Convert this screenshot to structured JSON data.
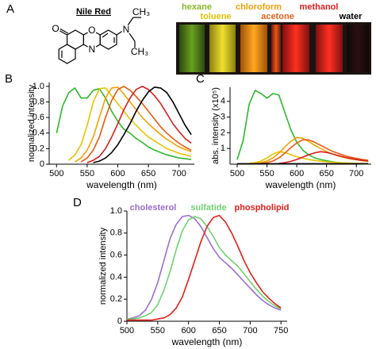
{
  "panel_a": {
    "label": "A",
    "molecule": "Nile Red",
    "atoms": [
      "O",
      "O",
      "N",
      "N",
      "CH₃",
      "CH₃"
    ],
    "solvents": [
      {
        "name": "hexane",
        "color": "#8ab62a"
      },
      {
        "name": "toluene",
        "color": "#dcc400"
      },
      {
        "name": "chloroform",
        "color": "#f0a000"
      },
      {
        "name": "acetone",
        "color": "#e0641e"
      },
      {
        "name": "methanol",
        "color": "#d42020"
      },
      {
        "name": "water",
        "color": "#000000"
      }
    ]
  },
  "chart_data": [
    {
      "type": "line",
      "panel": "B",
      "x_label": "wavelength (nm)",
      "y_label": "normalized intensity",
      "x": [
        490,
        500,
        510,
        520,
        530,
        540,
        550,
        560,
        570,
        580,
        590,
        600,
        610,
        620,
        630,
        640,
        650,
        660,
        670,
        680,
        690,
        700,
        710,
        720
      ],
      "xlim": [
        488,
        725
      ],
      "xticks": [
        500,
        550,
        600,
        650,
        700
      ],
      "ylim": [
        0,
        1.05
      ],
      "yticks": [
        0,
        0.2,
        0.4,
        0.6,
        0.8,
        {
          "value": 1,
          "label": "1.0"
        }
      ],
      "series": [
        {
          "color": "#2db82d",
          "values": [
            null,
            0.4,
            0.75,
            0.92,
            0.98,
            0.85,
            0.85,
            0.95,
            0.97,
            0.85,
            0.68,
            0.55,
            0.45,
            0.4,
            0.33,
            0.28,
            0.22,
            0.18,
            0.15,
            0.12,
            0.1,
            0.08,
            0.07,
            0.06
          ]
        },
        {
          "color": "#e6c200",
          "values": [
            null,
            null,
            null,
            0.05,
            0.12,
            0.25,
            0.5,
            0.8,
            0.97,
            0.98,
            0.88,
            0.78,
            0.68,
            0.58,
            0.5,
            0.42,
            0.35,
            0.3,
            0.25,
            0.2,
            0.17,
            0.14,
            0.12,
            0.1
          ]
        },
        {
          "color": "#f5a000",
          "values": [
            null,
            null,
            null,
            null,
            0.03,
            0.08,
            0.18,
            0.35,
            0.6,
            0.85,
            0.98,
            0.99,
            0.9,
            0.8,
            0.7,
            0.6,
            0.52,
            0.45,
            0.38,
            0.32,
            0.27,
            0.22,
            0.19,
            0.16
          ]
        },
        {
          "color": "#e85a10",
          "values": [
            null,
            null,
            null,
            null,
            null,
            0.03,
            0.08,
            0.18,
            0.35,
            0.6,
            0.82,
            0.96,
            1.0,
            0.95,
            0.87,
            0.78,
            0.68,
            0.58,
            0.48,
            0.4,
            0.33,
            0.27,
            0.22,
            0.18
          ]
        },
        {
          "color": "#d81e1e",
          "values": [
            null,
            null,
            null,
            null,
            null,
            null,
            0.02,
            0.05,
            0.1,
            0.2,
            0.35,
            0.52,
            0.7,
            0.85,
            0.96,
            1.0,
            0.96,
            0.88,
            0.78,
            0.65,
            0.52,
            0.42,
            0.33,
            0.27
          ]
        },
        {
          "color": "#000000",
          "values": [
            null,
            null,
            null,
            null,
            null,
            null,
            null,
            0.02,
            0.04,
            0.08,
            0.15,
            0.25,
            0.38,
            0.52,
            0.68,
            0.82,
            0.93,
            0.99,
            0.98,
            0.92,
            0.8,
            0.65,
            0.5,
            0.38
          ]
        }
      ]
    },
    {
      "type": "line",
      "panel": "C",
      "x_label": "wavelength (nm)",
      "y_label": "abs. intensity (x10⁵)",
      "x": [
        490,
        500,
        510,
        520,
        530,
        540,
        550,
        560,
        570,
        580,
        590,
        600,
        610,
        620,
        630,
        640,
        650,
        660,
        670,
        680,
        690,
        700,
        710,
        720
      ],
      "xlim": [
        488,
        725
      ],
      "xticks": [
        500,
        550,
        600,
        650,
        700
      ],
      "ylim": [
        0,
        4.9
      ],
      "yticks": [
        1,
        2,
        3,
        4
      ],
      "series": [
        {
          "color": "#2db82d",
          "values": [
            null,
            0.3,
            1.5,
            3.8,
            4.7,
            4.5,
            4.2,
            4.5,
            4.4,
            3.3,
            2.2,
            1.4,
            0.9,
            0.6,
            0.4,
            0.3,
            0.22,
            0.15,
            0.1,
            0.08,
            0.05,
            0.04,
            0.03,
            0.02
          ]
        },
        {
          "color": "#e6c200",
          "values": [
            null,
            null,
            null,
            0.05,
            0.1,
            0.2,
            0.4,
            0.65,
            0.8,
            0.75,
            0.6,
            0.48,
            0.38,
            0.3,
            0.24,
            0.19,
            0.15,
            0.12,
            0.1,
            0.08,
            0.06,
            0.05,
            0.04,
            0.03
          ]
        },
        {
          "color": "#f5a000",
          "values": [
            null,
            null,
            null,
            null,
            0.05,
            0.1,
            0.2,
            0.4,
            0.7,
            1.1,
            1.45,
            1.7,
            1.65,
            1.45,
            1.2,
            1.0,
            0.8,
            0.65,
            0.52,
            0.42,
            0.34,
            0.28,
            0.22,
            0.18
          ]
        },
        {
          "color": "#e85a10",
          "values": [
            null,
            null,
            null,
            null,
            null,
            0.05,
            0.1,
            0.2,
            0.4,
            0.7,
            1.05,
            1.35,
            1.55,
            1.55,
            1.4,
            1.2,
            1.0,
            0.82,
            0.68,
            0.55,
            0.45,
            0.37,
            0.3,
            0.25
          ]
        },
        {
          "color": "#d81e1e",
          "values": [
            null,
            null,
            null,
            null,
            null,
            null,
            null,
            null,
            0.05,
            0.1,
            0.18,
            0.3,
            0.45,
            0.6,
            0.72,
            0.8,
            0.75,
            0.65,
            0.55,
            0.45,
            0.37,
            0.3,
            0.24,
            0.2
          ]
        },
        {
          "color": "#000000",
          "values": [
            null,
            0.03,
            0.03,
            0.03,
            0.03,
            0.03,
            0.03,
            0.03,
            0.03,
            0.03,
            0.03,
            0.03,
            0.03,
            0.03,
            0.03,
            0.03,
            0.03,
            0.03,
            0.03,
            0.03,
            0.03,
            0.03,
            0.03,
            0.03
          ]
        }
      ]
    },
    {
      "type": "line",
      "panel": "D",
      "x_label": "wavelength (nm)",
      "y_label": "normalized intensity",
      "x": [
        500,
        510,
        520,
        530,
        540,
        550,
        560,
        570,
        580,
        590,
        600,
        610,
        620,
        630,
        640,
        650,
        660,
        670,
        680,
        690,
        700,
        710,
        720,
        730,
        740,
        750
      ],
      "xlim": [
        500,
        760
      ],
      "xticks": [
        500,
        550,
        600,
        650,
        700,
        750
      ],
      "ylim": [
        0,
        1.0
      ],
      "yticks": [
        0,
        0.2,
        0.4,
        0.6,
        0.8,
        {
          "value": 1,
          "label": "1.0"
        }
      ],
      "series": [
        {
          "name": "cholesterol",
          "color": "#9b6fd0",
          "values": [
            0.02,
            0.03,
            0.05,
            0.1,
            0.2,
            0.35,
            0.55,
            0.75,
            0.88,
            0.95,
            0.96,
            0.93,
            0.86,
            0.76,
            0.66,
            0.58,
            0.53,
            0.48,
            0.42,
            0.36,
            0.3,
            0.24,
            0.19,
            0.15,
            0.12,
            0.1
          ]
        },
        {
          "name": "sulfatide",
          "color": "#6fd26f",
          "values": [
            0.02,
            0.02,
            0.03,
            0.05,
            0.08,
            0.15,
            0.28,
            0.45,
            0.65,
            0.82,
            0.92,
            0.95,
            0.93,
            0.86,
            0.77,
            0.67,
            0.6,
            0.55,
            0.5,
            0.43,
            0.36,
            0.29,
            0.23,
            0.18,
            0.14,
            0.11
          ]
        },
        {
          "name": "phospholipid",
          "color": "#e0201a",
          "values": [
            0.01,
            0.01,
            0.01,
            0.01,
            0.01,
            0.02,
            0.03,
            0.06,
            0.12,
            0.22,
            0.38,
            0.55,
            0.72,
            0.86,
            0.94,
            0.96,
            0.9,
            0.8,
            0.68,
            0.55,
            0.44,
            0.35,
            0.27,
            0.21,
            0.16,
            0.12
          ]
        }
      ]
    }
  ]
}
